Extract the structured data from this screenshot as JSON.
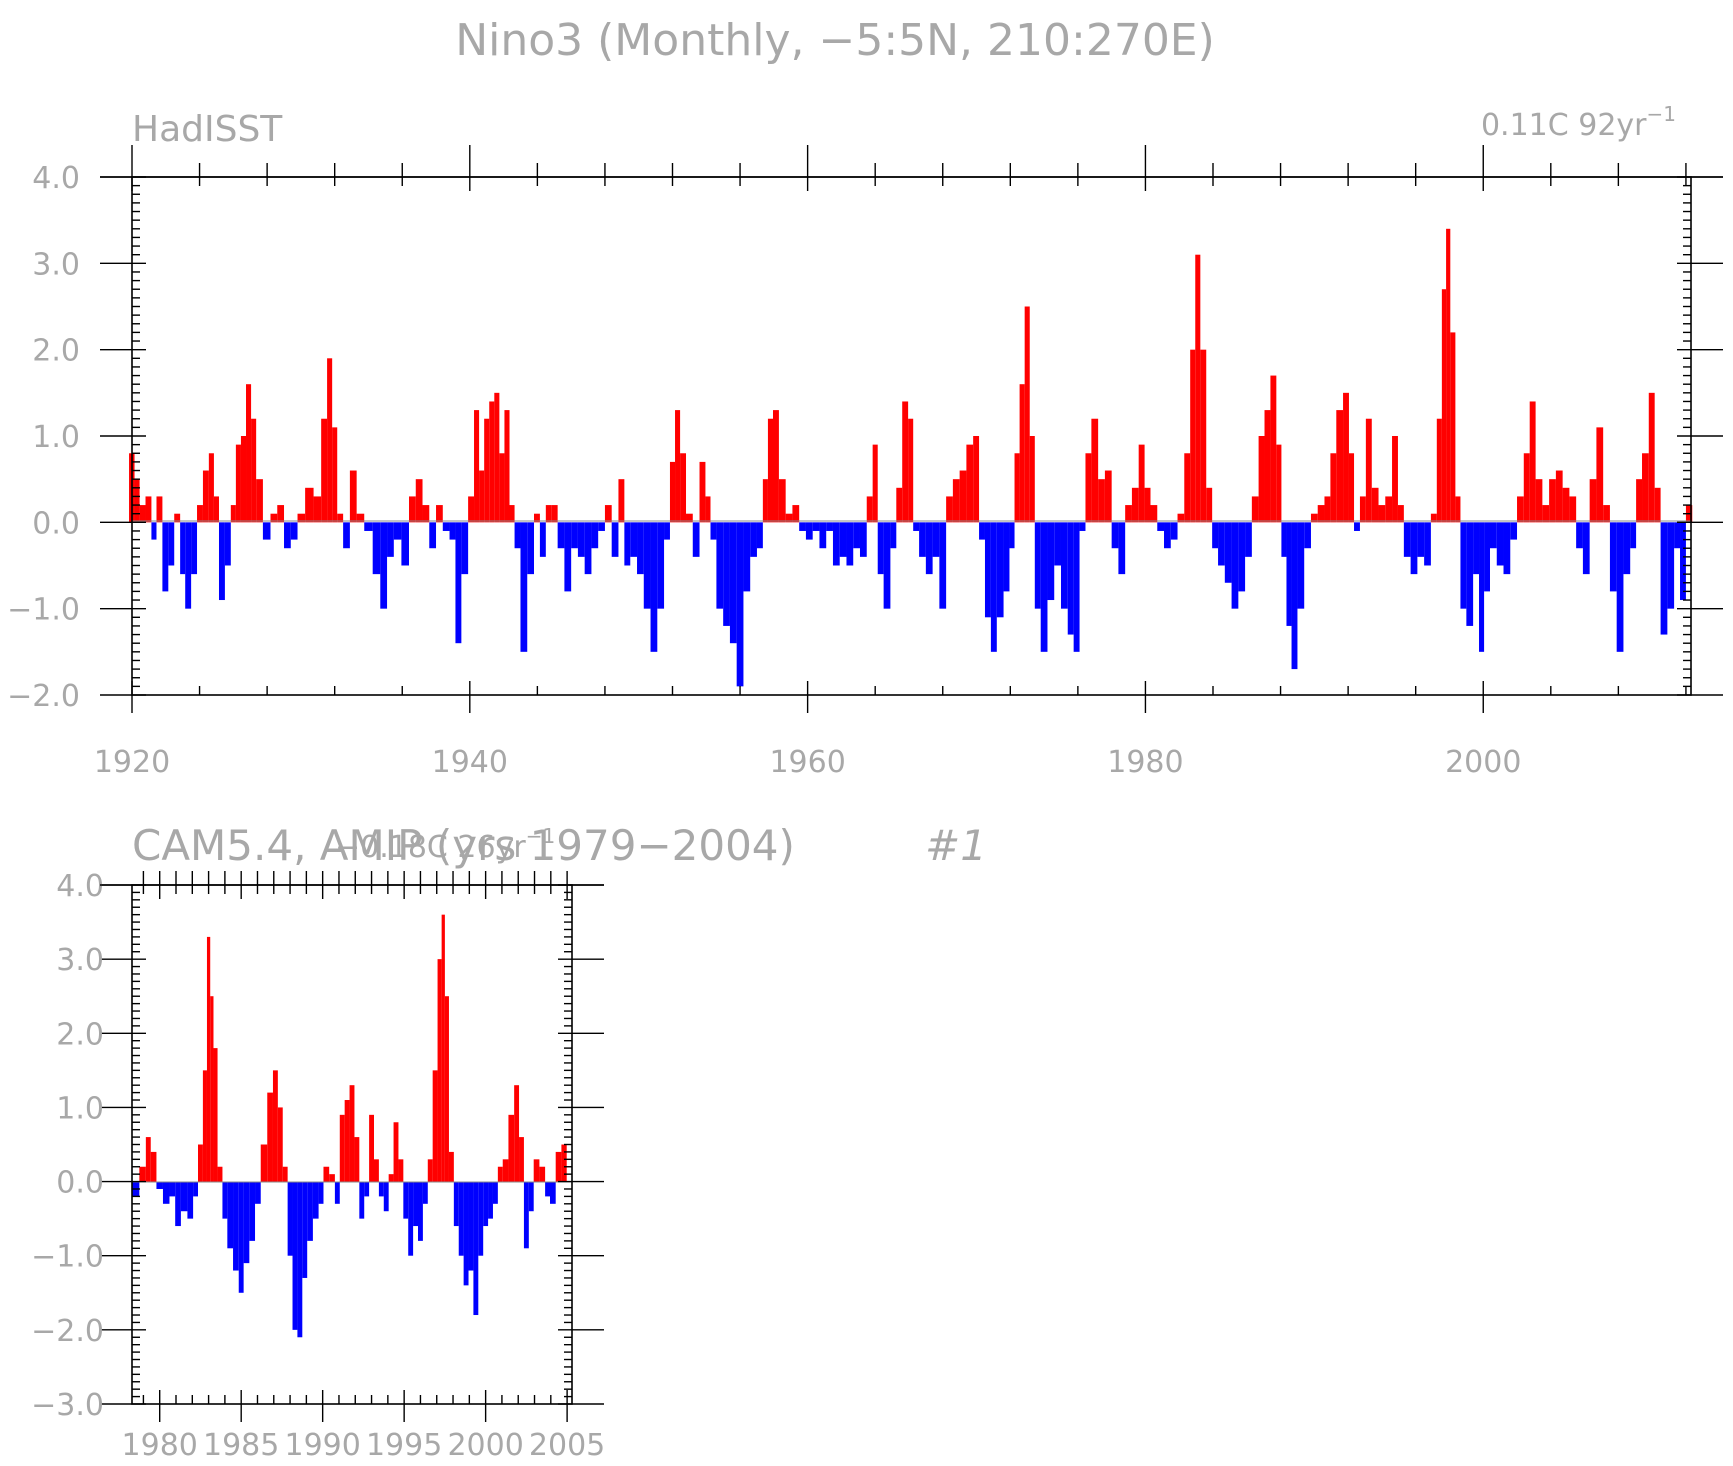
{
  "title": "Nino3 (Monthly, −5:5N, 210:270E)",
  "colors": {
    "positive": "#ff0000",
    "negative": "#0000ff",
    "text": "#a8a8a8",
    "axis": "#000000"
  },
  "chart_data": [
    {
      "type": "area",
      "panel_label": "HadISST",
      "trend_label": "0.11C 92yr",
      "trend_superscript": "−1",
      "xlim": [
        1920,
        2012.3
      ],
      "ylim": [
        -2.0,
        4.0
      ],
      "x_ticks": [
        1920,
        1940,
        1960,
        1980,
        2000
      ],
      "x_tick_labels": [
        "1920",
        "1940",
        "1960",
        "1980",
        "2000"
      ],
      "y_ticks": [
        -2.0,
        -1.0,
        0.0,
        1.0,
        2.0,
        3.0,
        4.0
      ],
      "y_tick_labels": [
        "−2.0",
        "−1.0",
        "0.0",
        "1.0",
        "2.0",
        "3.0",
        "4.0"
      ],
      "fill_positive": "red",
      "fill_negative": "blue",
      "points": [
        [
          1920.0,
          0.8
        ],
        [
          1920.3,
          0.5
        ],
        [
          1920.6,
          0.2
        ],
        [
          1921.0,
          0.3
        ],
        [
          1921.3,
          -0.2
        ],
        [
          1921.6,
          0.3
        ],
        [
          1922.0,
          -0.8
        ],
        [
          1922.3,
          -0.5
        ],
        [
          1922.7,
          0.1
        ],
        [
          1923.0,
          -0.6
        ],
        [
          1923.3,
          -1.0
        ],
        [
          1923.7,
          -0.6
        ],
        [
          1924.0,
          0.2
        ],
        [
          1924.4,
          0.6
        ],
        [
          1924.7,
          0.8
        ],
        [
          1925.0,
          0.3
        ],
        [
          1925.3,
          -0.9
        ],
        [
          1925.7,
          -0.5
        ],
        [
          1926.0,
          0.2
        ],
        [
          1926.3,
          0.9
        ],
        [
          1926.6,
          1.0
        ],
        [
          1926.9,
          1.6
        ],
        [
          1927.2,
          1.2
        ],
        [
          1927.5,
          0.5
        ],
        [
          1928.0,
          -0.2
        ],
        [
          1928.4,
          0.1
        ],
        [
          1928.8,
          0.2
        ],
        [
          1929.2,
          -0.3
        ],
        [
          1929.6,
          -0.2
        ],
        [
          1930.0,
          0.1
        ],
        [
          1930.5,
          0.4
        ],
        [
          1931.0,
          0.3
        ],
        [
          1931.4,
          1.2
        ],
        [
          1931.7,
          1.9
        ],
        [
          1932.0,
          1.1
        ],
        [
          1932.3,
          0.1
        ],
        [
          1932.7,
          -0.3
        ],
        [
          1933.1,
          0.6
        ],
        [
          1933.5,
          0.1
        ],
        [
          1934.0,
          -0.1
        ],
        [
          1934.5,
          -0.6
        ],
        [
          1934.9,
          -1.0
        ],
        [
          1935.3,
          -0.4
        ],
        [
          1935.7,
          -0.2
        ],
        [
          1936.2,
          -0.5
        ],
        [
          1936.6,
          0.3
        ],
        [
          1937.0,
          0.5
        ],
        [
          1937.4,
          0.2
        ],
        [
          1937.8,
          -0.3
        ],
        [
          1938.2,
          0.2
        ],
        [
          1938.6,
          -0.1
        ],
        [
          1939.0,
          -0.2
        ],
        [
          1939.3,
          -1.4
        ],
        [
          1939.7,
          -0.6
        ],
        [
          1940.1,
          0.3
        ],
        [
          1940.4,
          1.3
        ],
        [
          1940.7,
          0.6
        ],
        [
          1941.0,
          1.2
        ],
        [
          1941.3,
          1.4
        ],
        [
          1941.6,
          1.5
        ],
        [
          1941.9,
          0.8
        ],
        [
          1942.2,
          1.3
        ],
        [
          1942.5,
          0.2
        ],
        [
          1942.8,
          -0.3
        ],
        [
          1943.2,
          -1.5
        ],
        [
          1943.6,
          -0.6
        ],
        [
          1944.0,
          0.1
        ],
        [
          1944.3,
          -0.4
        ],
        [
          1944.7,
          0.2
        ],
        [
          1945.0,
          0.2
        ],
        [
          1945.4,
          -0.3
        ],
        [
          1945.8,
          -0.8
        ],
        [
          1946.2,
          -0.3
        ],
        [
          1946.6,
          -0.4
        ],
        [
          1947.0,
          -0.6
        ],
        [
          1947.4,
          -0.3
        ],
        [
          1947.8,
          -0.1
        ],
        [
          1948.2,
          0.2
        ],
        [
          1948.6,
          -0.4
        ],
        [
          1949.0,
          0.5
        ],
        [
          1949.3,
          -0.5
        ],
        [
          1949.7,
          -0.4
        ],
        [
          1950.1,
          -0.6
        ],
        [
          1950.5,
          -1.0
        ],
        [
          1950.9,
          -1.5
        ],
        [
          1951.3,
          -1.0
        ],
        [
          1951.7,
          -0.2
        ],
        [
          1952.0,
          0.7
        ],
        [
          1952.3,
          1.3
        ],
        [
          1952.6,
          0.8
        ],
        [
          1953.0,
          0.1
        ],
        [
          1953.4,
          -0.4
        ],
        [
          1953.8,
          0.7
        ],
        [
          1954.1,
          0.3
        ],
        [
          1954.4,
          -0.2
        ],
        [
          1954.8,
          -1.0
        ],
        [
          1955.2,
          -1.2
        ],
        [
          1955.6,
          -1.4
        ],
        [
          1956.0,
          -1.9
        ],
        [
          1956.4,
          -0.8
        ],
        [
          1956.8,
          -0.4
        ],
        [
          1957.2,
          -0.3
        ],
        [
          1957.5,
          0.5
        ],
        [
          1957.8,
          1.2
        ],
        [
          1958.1,
          1.3
        ],
        [
          1958.5,
          0.5
        ],
        [
          1958.9,
          0.1
        ],
        [
          1959.3,
          0.2
        ],
        [
          1959.7,
          -0.1
        ],
        [
          1960.1,
          -0.2
        ],
        [
          1960.5,
          -0.1
        ],
        [
          1960.9,
          -0.3
        ],
        [
          1961.3,
          -0.1
        ],
        [
          1961.7,
          -0.5
        ],
        [
          1962.1,
          -0.4
        ],
        [
          1962.5,
          -0.5
        ],
        [
          1962.9,
          -0.3
        ],
        [
          1963.3,
          -0.4
        ],
        [
          1963.7,
          0.3
        ],
        [
          1964.0,
          0.9
        ],
        [
          1964.3,
          -0.6
        ],
        [
          1964.7,
          -1.0
        ],
        [
          1965.1,
          -0.3
        ],
        [
          1965.4,
          0.4
        ],
        [
          1965.8,
          1.4
        ],
        [
          1966.1,
          1.2
        ],
        [
          1966.4,
          -0.1
        ],
        [
          1966.8,
          -0.4
        ],
        [
          1967.2,
          -0.6
        ],
        [
          1967.6,
          -0.4
        ],
        [
          1968.0,
          -1.0
        ],
        [
          1968.4,
          0.3
        ],
        [
          1968.8,
          0.5
        ],
        [
          1969.2,
          0.6
        ],
        [
          1969.6,
          0.9
        ],
        [
          1970.0,
          1.0
        ],
        [
          1970.3,
          -0.2
        ],
        [
          1970.7,
          -1.1
        ],
        [
          1971.0,
          -1.5
        ],
        [
          1971.4,
          -1.1
        ],
        [
          1971.8,
          -0.8
        ],
        [
          1972.1,
          -0.3
        ],
        [
          1972.4,
          0.8
        ],
        [
          1972.7,
          1.6
        ],
        [
          1973.0,
          2.5
        ],
        [
          1973.3,
          1.0
        ],
        [
          1973.6,
          -1.0
        ],
        [
          1974.0,
          -1.5
        ],
        [
          1974.4,
          -0.9
        ],
        [
          1974.8,
          -0.5
        ],
        [
          1975.2,
          -1.0
        ],
        [
          1975.6,
          -1.3
        ],
        [
          1975.9,
          -1.5
        ],
        [
          1976.3,
          -0.1
        ],
        [
          1976.6,
          0.8
        ],
        [
          1977.0,
          1.2
        ],
        [
          1977.4,
          0.5
        ],
        [
          1977.8,
          0.6
        ],
        [
          1978.2,
          -0.3
        ],
        [
          1978.6,
          -0.6
        ],
        [
          1979.0,
          0.2
        ],
        [
          1979.4,
          0.4
        ],
        [
          1979.8,
          0.9
        ],
        [
          1980.1,
          0.4
        ],
        [
          1980.5,
          0.2
        ],
        [
          1980.9,
          -0.1
        ],
        [
          1981.3,
          -0.3
        ],
        [
          1981.7,
          -0.2
        ],
        [
          1982.1,
          0.1
        ],
        [
          1982.5,
          0.8
        ],
        [
          1982.8,
          2.0
        ],
        [
          1983.1,
          3.1
        ],
        [
          1983.4,
          2.0
        ],
        [
          1983.8,
          0.4
        ],
        [
          1984.1,
          -0.3
        ],
        [
          1984.5,
          -0.5
        ],
        [
          1984.9,
          -0.7
        ],
        [
          1985.3,
          -1.0
        ],
        [
          1985.7,
          -0.8
        ],
        [
          1986.1,
          -0.4
        ],
        [
          1986.5,
          0.3
        ],
        [
          1986.9,
          1.0
        ],
        [
          1987.2,
          1.3
        ],
        [
          1987.6,
          1.7
        ],
        [
          1987.9,
          0.9
        ],
        [
          1988.2,
          -0.4
        ],
        [
          1988.5,
          -1.2
        ],
        [
          1988.8,
          -1.7
        ],
        [
          1989.2,
          -1.0
        ],
        [
          1989.6,
          -0.3
        ],
        [
          1990.0,
          0.1
        ],
        [
          1990.4,
          0.2
        ],
        [
          1990.8,
          0.3
        ],
        [
          1991.1,
          0.8
        ],
        [
          1991.5,
          1.3
        ],
        [
          1991.9,
          1.5
        ],
        [
          1992.2,
          0.8
        ],
        [
          1992.5,
          -0.1
        ],
        [
          1992.9,
          0.3
        ],
        [
          1993.2,
          1.2
        ],
        [
          1993.6,
          0.4
        ],
        [
          1994.0,
          0.2
        ],
        [
          1994.4,
          0.3
        ],
        [
          1994.8,
          1.0
        ],
        [
          1995.1,
          0.2
        ],
        [
          1995.5,
          -0.4
        ],
        [
          1995.9,
          -0.6
        ],
        [
          1996.3,
          -0.4
        ],
        [
          1996.7,
          -0.5
        ],
        [
          1997.1,
          0.1
        ],
        [
          1997.4,
          1.2
        ],
        [
          1997.7,
          2.7
        ],
        [
          1997.9,
          3.4
        ],
        [
          1998.2,
          2.2
        ],
        [
          1998.5,
          0.3
        ],
        [
          1998.8,
          -1.0
        ],
        [
          1999.2,
          -1.2
        ],
        [
          1999.6,
          -0.6
        ],
        [
          1999.9,
          -1.5
        ],
        [
          2000.2,
          -0.8
        ],
        [
          2000.6,
          -0.3
        ],
        [
          2001.0,
          -0.5
        ],
        [
          2001.4,
          -0.6
        ],
        [
          2001.8,
          -0.2
        ],
        [
          2002.2,
          0.3
        ],
        [
          2002.6,
          0.8
        ],
        [
          2002.9,
          1.4
        ],
        [
          2003.3,
          0.5
        ],
        [
          2003.7,
          0.2
        ],
        [
          2004.1,
          0.5
        ],
        [
          2004.5,
          0.6
        ],
        [
          2004.9,
          0.4
        ],
        [
          2005.3,
          0.3
        ],
        [
          2005.7,
          -0.3
        ],
        [
          2006.1,
          -0.6
        ],
        [
          2006.5,
          0.5
        ],
        [
          2006.9,
          1.1
        ],
        [
          2007.3,
          0.2
        ],
        [
          2007.7,
          -0.8
        ],
        [
          2008.1,
          -1.5
        ],
        [
          2008.5,
          -0.6
        ],
        [
          2008.9,
          -0.3
        ],
        [
          2009.2,
          0.5
        ],
        [
          2009.6,
          0.8
        ],
        [
          2010.0,
          1.5
        ],
        [
          2010.3,
          0.4
        ],
        [
          2010.7,
          -1.3
        ],
        [
          2011.1,
          -1.0
        ],
        [
          2011.5,
          -0.3
        ],
        [
          2011.8,
          -0.9
        ],
        [
          2012.2,
          0.2
        ]
      ]
    },
    {
      "type": "area",
      "panel_label": "CAM5.4, AMIP (yrs 1979−2004)",
      "trend_label": "−0.18C 26yr",
      "trend_superscript": "−1",
      "run_label": "#1",
      "xlim": [
        1978.3,
        2005.3
      ],
      "ylim": [
        -3.0,
        4.0
      ],
      "x_ticks": [
        1980,
        1985,
        1990,
        1995,
        2000,
        2005
      ],
      "x_tick_labels": [
        "1980",
        "1985",
        "1990",
        "1995",
        "2000",
        "2005"
      ],
      "y_ticks": [
        -3.0,
        -2.0,
        -1.0,
        0.0,
        1.0,
        2.0,
        3.0,
        4.0
      ],
      "y_tick_labels": [
        "−3.0",
        "−2.0",
        "−1.0",
        "0.0",
        "1.0",
        "2.0",
        "3.0",
        "4.0"
      ],
      "fill_positive": "red",
      "fill_negative": "blue",
      "points": [
        [
          1978.5,
          -0.2
        ],
        [
          1979.0,
          0.2
        ],
        [
          1979.3,
          0.6
        ],
        [
          1979.6,
          0.4
        ],
        [
          1980.0,
          -0.1
        ],
        [
          1980.4,
          -0.3
        ],
        [
          1980.8,
          -0.2
        ],
        [
          1981.1,
          -0.6
        ],
        [
          1981.5,
          -0.4
        ],
        [
          1981.9,
          -0.5
        ],
        [
          1982.2,
          -0.2
        ],
        [
          1982.5,
          0.5
        ],
        [
          1982.8,
          1.5
        ],
        [
          1983.0,
          3.3
        ],
        [
          1983.2,
          2.5
        ],
        [
          1983.4,
          1.8
        ],
        [
          1983.7,
          0.2
        ],
        [
          1984.0,
          -0.5
        ],
        [
          1984.3,
          -0.9
        ],
        [
          1984.7,
          -1.2
        ],
        [
          1985.0,
          -1.5
        ],
        [
          1985.3,
          -1.1
        ],
        [
          1985.7,
          -0.8
        ],
        [
          1986.0,
          -0.3
        ],
        [
          1986.4,
          0.5
        ],
        [
          1986.8,
          1.2
        ],
        [
          1987.1,
          1.5
        ],
        [
          1987.4,
          1.0
        ],
        [
          1987.7,
          0.2
        ],
        [
          1988.0,
          -1.0
        ],
        [
          1988.3,
          -2.0
        ],
        [
          1988.6,
          -2.1
        ],
        [
          1988.9,
          -1.3
        ],
        [
          1989.2,
          -0.8
        ],
        [
          1989.6,
          -0.5
        ],
        [
          1989.9,
          -0.3
        ],
        [
          1990.2,
          0.2
        ],
        [
          1990.6,
          0.1
        ],
        [
          1990.9,
          -0.3
        ],
        [
          1991.2,
          0.9
        ],
        [
          1991.5,
          1.1
        ],
        [
          1991.8,
          1.3
        ],
        [
          1992.1,
          0.6
        ],
        [
          1992.4,
          -0.5
        ],
        [
          1992.7,
          -0.2
        ],
        [
          1993.0,
          0.9
        ],
        [
          1993.3,
          0.3
        ],
        [
          1993.6,
          -0.2
        ],
        [
          1993.9,
          -0.4
        ],
        [
          1994.2,
          0.1
        ],
        [
          1994.5,
          0.8
        ],
        [
          1994.8,
          0.3
        ],
        [
          1995.1,
          -0.5
        ],
        [
          1995.4,
          -1.0
        ],
        [
          1995.7,
          -0.6
        ],
        [
          1996.0,
          -0.8
        ],
        [
          1996.3,
          -0.3
        ],
        [
          1996.6,
          0.3
        ],
        [
          1996.9,
          1.5
        ],
        [
          1997.2,
          3.0
        ],
        [
          1997.4,
          3.6
        ],
        [
          1997.6,
          2.5
        ],
        [
          1997.9,
          0.4
        ],
        [
          1998.2,
          -0.6
        ],
        [
          1998.5,
          -1.0
        ],
        [
          1998.8,
          -1.4
        ],
        [
          1999.1,
          -1.2
        ],
        [
          1999.4,
          -1.8
        ],
        [
          1999.7,
          -1.0
        ],
        [
          2000.0,
          -0.6
        ],
        [
          2000.3,
          -0.5
        ],
        [
          2000.6,
          -0.3
        ],
        [
          2000.9,
          0.2
        ],
        [
          2001.2,
          0.3
        ],
        [
          2001.6,
          0.9
        ],
        [
          2001.9,
          1.3
        ],
        [
          2002.2,
          0.6
        ],
        [
          2002.5,
          -0.9
        ],
        [
          2002.8,
          -0.4
        ],
        [
          2003.1,
          0.3
        ],
        [
          2003.5,
          0.2
        ],
        [
          2003.8,
          -0.2
        ],
        [
          2004.1,
          -0.3
        ],
        [
          2004.5,
          0.4
        ],
        [
          2004.8,
          0.5
        ]
      ]
    }
  ]
}
